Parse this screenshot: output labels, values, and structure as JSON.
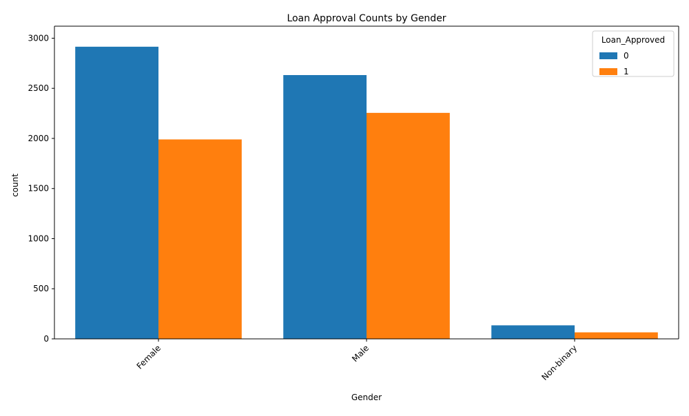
{
  "chart_data": {
    "type": "bar",
    "title": "Loan Approval Counts by Gender",
    "xlabel": "Gender",
    "ylabel": "count",
    "categories": [
      "Female",
      "Male",
      "Non-binary"
    ],
    "series": [
      {
        "name": "0",
        "values": [
          2915,
          2632,
          135
        ],
        "color": "#1f77b4"
      },
      {
        "name": "1",
        "values": [
          1990,
          2255,
          65
        ],
        "color": "#ff7f0e"
      }
    ],
    "ylim": [
      0,
      3120
    ],
    "yticks": [
      0,
      500,
      1000,
      1500,
      2000,
      2500,
      3000
    ],
    "xtick_rotation": 45,
    "legend": {
      "title": "Loan_Approved",
      "position": "top-right"
    },
    "grid": false
  }
}
